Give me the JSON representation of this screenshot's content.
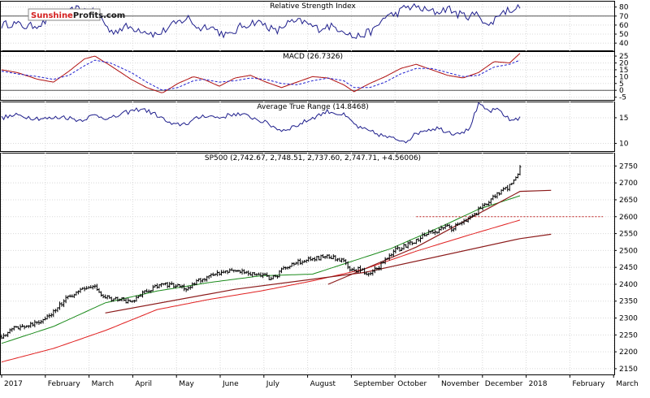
{
  "brand": {
    "part1": "Sunshine",
    "part2": "Profits",
    "part3": ".com"
  },
  "colors": {
    "rsi": "#1e1e8c",
    "macd": "#b01010",
    "signal": "#2020d0",
    "atr": "#1e1e8c",
    "sma50": "#1a8a1a",
    "sma200": "#e02020",
    "trend": "#8b1a1a",
    "resistance": "#c02020",
    "price": "#000000"
  },
  "chart_data": [
    {
      "type": "line",
      "title": "Relative Strength Index",
      "y_ticks": [
        40,
        50,
        60,
        70,
        80
      ],
      "ylim": [
        32,
        86
      ],
      "reference_line": 70,
      "x_range": [
        0,
        1
      ],
      "series": [
        {
          "name": "RSI",
          "anchors": [
            [
              0.0,
              60
            ],
            [
              0.02,
              62
            ],
            [
              0.05,
              58
            ],
            [
              0.08,
              62
            ],
            [
              0.1,
              72
            ],
            [
              0.12,
              68
            ],
            [
              0.14,
              78
            ],
            [
              0.17,
              76
            ],
            [
              0.19,
              70
            ],
            [
              0.21,
              52
            ],
            [
              0.24,
              58
            ],
            [
              0.27,
              55
            ],
            [
              0.3,
              49
            ],
            [
              0.33,
              60
            ],
            [
              0.36,
              68
            ],
            [
              0.38,
              56
            ],
            [
              0.4,
              60
            ],
            [
              0.42,
              52
            ],
            [
              0.44,
              48
            ],
            [
              0.46,
              58
            ],
            [
              0.49,
              64
            ],
            [
              0.51,
              60
            ],
            [
              0.53,
              52
            ],
            [
              0.55,
              62
            ],
            [
              0.58,
              64
            ],
            [
              0.61,
              56
            ],
            [
              0.63,
              59
            ],
            [
              0.66,
              55
            ],
            [
              0.68,
              46
            ],
            [
              0.7,
              50
            ],
            [
              0.72,
              55
            ],
            [
              0.74,
              70
            ],
            [
              0.76,
              72
            ],
            [
              0.78,
              80
            ],
            [
              0.8,
              80
            ],
            [
              0.82,
              76
            ],
            [
              0.84,
              74
            ],
            [
              0.86,
              79
            ],
            [
              0.88,
              72
            ],
            [
              0.9,
              70
            ],
            [
              0.92,
              72
            ],
            [
              0.94,
              58
            ],
            [
              0.96,
              73
            ],
            [
              0.98,
              77
            ],
            [
              1.0,
              80
            ]
          ]
        }
      ]
    },
    {
      "type": "line",
      "title": "MACD (26.7326)",
      "y_ticks": [
        -5,
        0,
        5,
        10,
        15,
        20,
        25
      ],
      "ylim": [
        -7,
        28
      ],
      "x_range": [
        0,
        1
      ],
      "series": [
        {
          "name": "MACD",
          "anchors": [
            [
              0.0,
              15
            ],
            [
              0.03,
              13
            ],
            [
              0.07,
              8
            ],
            [
              0.1,
              6
            ],
            [
              0.13,
              14
            ],
            [
              0.16,
              23
            ],
            [
              0.18,
              25
            ],
            [
              0.21,
              18
            ],
            [
              0.25,
              8
            ],
            [
              0.28,
              2
            ],
            [
              0.31,
              -2
            ],
            [
              0.34,
              5
            ],
            [
              0.37,
              10
            ],
            [
              0.39,
              8
            ],
            [
              0.42,
              3
            ],
            [
              0.45,
              9
            ],
            [
              0.48,
              11
            ],
            [
              0.51,
              6
            ],
            [
              0.54,
              2
            ],
            [
              0.57,
              6
            ],
            [
              0.6,
              10
            ],
            [
              0.63,
              9
            ],
            [
              0.66,
              4
            ],
            [
              0.68,
              -1
            ],
            [
              0.71,
              5
            ],
            [
              0.74,
              10
            ],
            [
              0.77,
              16
            ],
            [
              0.8,
              19
            ],
            [
              0.83,
              15
            ],
            [
              0.86,
              11
            ],
            [
              0.89,
              9
            ],
            [
              0.92,
              13
            ],
            [
              0.95,
              21
            ],
            [
              0.98,
              20
            ],
            [
              1.0,
              27
            ]
          ]
        },
        {
          "name": "Signal",
          "anchors": [
            [
              0.0,
              14
            ],
            [
              0.03,
              12
            ],
            [
              0.07,
              10
            ],
            [
              0.1,
              8
            ],
            [
              0.13,
              11
            ],
            [
              0.16,
              18
            ],
            [
              0.18,
              22
            ],
            [
              0.21,
              20
            ],
            [
              0.25,
              13
            ],
            [
              0.28,
              6
            ],
            [
              0.31,
              0
            ],
            [
              0.34,
              2
            ],
            [
              0.37,
              7
            ],
            [
              0.39,
              8
            ],
            [
              0.42,
              6
            ],
            [
              0.45,
              7
            ],
            [
              0.48,
              9
            ],
            [
              0.51,
              8
            ],
            [
              0.54,
              5
            ],
            [
              0.57,
              4
            ],
            [
              0.6,
              7
            ],
            [
              0.63,
              9
            ],
            [
              0.66,
              7
            ],
            [
              0.68,
              2
            ],
            [
              0.71,
              2
            ],
            [
              0.74,
              6
            ],
            [
              0.77,
              12
            ],
            [
              0.8,
              16
            ],
            [
              0.83,
              16
            ],
            [
              0.86,
              13
            ],
            [
              0.89,
              10
            ],
            [
              0.92,
              11
            ],
            [
              0.95,
              17
            ],
            [
              0.98,
              19
            ],
            [
              1.0,
              22
            ]
          ]
        }
      ]
    },
    {
      "type": "line",
      "title": "Average True Range (14.8468)",
      "y_ticks": [
        10,
        15
      ],
      "ylim": [
        8.5,
        18
      ],
      "x_range": [
        0,
        1
      ],
      "series": [
        {
          "name": "ATR",
          "anchors": [
            [
              0.0,
              15
            ],
            [
              0.03,
              15.5
            ],
            [
              0.06,
              15
            ],
            [
              0.09,
              14.8
            ],
            [
              0.12,
              15.2
            ],
            [
              0.15,
              14.5
            ],
            [
              0.18,
              15.5
            ],
            [
              0.21,
              14.8
            ],
            [
              0.24,
              16
            ],
            [
              0.27,
              16.8
            ],
            [
              0.3,
              15.5
            ],
            [
              0.33,
              13.5
            ],
            [
              0.36,
              14
            ],
            [
              0.39,
              15.5
            ],
            [
              0.42,
              15
            ],
            [
              0.45,
              15.8
            ],
            [
              0.48,
              15.2
            ],
            [
              0.51,
              14
            ],
            [
              0.54,
              12.5
            ],
            [
              0.57,
              13.5
            ],
            [
              0.6,
              15
            ],
            [
              0.63,
              16.3
            ],
            [
              0.66,
              15.5
            ],
            [
              0.69,
              13
            ],
            [
              0.72,
              12
            ],
            [
              0.75,
              11
            ],
            [
              0.78,
              10.5
            ],
            [
              0.81,
              12.5
            ],
            [
              0.84,
              13
            ],
            [
              0.87,
              12
            ],
            [
              0.9,
              12.5
            ],
            [
              0.92,
              17.5
            ],
            [
              0.94,
              16.3
            ],
            [
              0.96,
              16.5
            ],
            [
              0.98,
              14.5
            ],
            [
              1.0,
              15
            ]
          ]
        }
      ]
    },
    {
      "type": "candlestick",
      "title": "SP500 (2,742.67, 2,748.51, 2,737.60, 2,747.71, +4.56006)",
      "y_ticks": [
        2150,
        2200,
        2250,
        2300,
        2350,
        2400,
        2450,
        2500,
        2550,
        2600,
        2650,
        2700,
        2750
      ],
      "ylim": [
        2133,
        2787
      ],
      "x_labels": [
        "2017",
        "February",
        "March",
        "April",
        "May",
        "June",
        "July",
        "August",
        "September",
        "October",
        "November",
        "December",
        "2018",
        "February",
        "March"
      ],
      "price_anchors": [
        [
          0.0,
          2245
        ],
        [
          0.02,
          2268
        ],
        [
          0.05,
          2275
        ],
        [
          0.08,
          2295
        ],
        [
          0.1,
          2320
        ],
        [
          0.13,
          2365
        ],
        [
          0.16,
          2385
        ],
        [
          0.18,
          2395
        ],
        [
          0.19,
          2372
        ],
        [
          0.21,
          2358
        ],
        [
          0.23,
          2355
        ],
        [
          0.25,
          2345
        ],
        [
          0.27,
          2372
        ],
        [
          0.29,
          2388
        ],
        [
          0.3,
          2395
        ],
        [
          0.32,
          2400
        ],
        [
          0.34,
          2395
        ],
        [
          0.36,
          2385
        ],
        [
          0.37,
          2405
        ],
        [
          0.39,
          2415
        ],
        [
          0.41,
          2430
        ],
        [
          0.43,
          2440
        ],
        [
          0.45,
          2442
        ],
        [
          0.47,
          2435
        ],
        [
          0.49,
          2432
        ],
        [
          0.51,
          2425
        ],
        [
          0.52,
          2415
        ],
        [
          0.53,
          2425
        ],
        [
          0.54,
          2440
        ],
        [
          0.56,
          2458
        ],
        [
          0.58,
          2470
        ],
        [
          0.6,
          2475
        ],
        [
          0.62,
          2480
        ],
        [
          0.63,
          2482
        ],
        [
          0.65,
          2475
        ],
        [
          0.66,
          2470
        ],
        [
          0.67,
          2440
        ],
        [
          0.68,
          2438
        ],
        [
          0.69,
          2445
        ],
        [
          0.7,
          2435
        ],
        [
          0.71,
          2430
        ],
        [
          0.72,
          2445
        ],
        [
          0.73,
          2455
        ],
        [
          0.74,
          2470
        ],
        [
          0.75,
          2490
        ],
        [
          0.76,
          2500
        ],
        [
          0.78,
          2515
        ],
        [
          0.8,
          2530
        ],
        [
          0.82,
          2548
        ],
        [
          0.83,
          2555
        ],
        [
          0.84,
          2555
        ],
        [
          0.85,
          2568
        ],
        [
          0.86,
          2570
        ],
        [
          0.87,
          2565
        ],
        [
          0.88,
          2575
        ],
        [
          0.89,
          2582
        ],
        [
          0.9,
          2592
        ],
        [
          0.91,
          2600
        ],
        [
          0.92,
          2620
        ],
        [
          0.93,
          2630
        ],
        [
          0.94,
          2645
        ],
        [
          0.95,
          2660
        ],
        [
          0.96,
          2668
        ],
        [
          0.97,
          2680
        ],
        [
          0.98,
          2690
        ],
        [
          0.985,
          2700
        ],
        [
          0.99,
          2705
        ],
        [
          1.0,
          2747.71
        ]
      ],
      "lines": [
        {
          "name": "50-day moving average",
          "anchors": [
            [
              0.0,
              2225
            ],
            [
              0.1,
              2275
            ],
            [
              0.2,
              2345
            ],
            [
              0.3,
              2380
            ],
            [
              0.4,
              2405
            ],
            [
              0.5,
              2425
            ],
            [
              0.6,
              2430
            ],
            [
              0.66,
              2460
            ],
            [
              0.75,
              2505
            ],
            [
              0.85,
              2572
            ],
            [
              0.92,
              2622
            ],
            [
              1.0,
              2662
            ]
          ]
        },
        {
          "name": "200-day moving average",
          "anchors": [
            [
              0.0,
              2170
            ],
            [
              0.1,
              2210
            ],
            [
              0.2,
              2263
            ],
            [
              0.3,
              2325
            ],
            [
              0.4,
              2355
            ],
            [
              0.5,
              2380
            ],
            [
              0.6,
              2410
            ],
            [
              0.7,
              2445
            ],
            [
              0.8,
              2498
            ],
            [
              0.9,
              2545
            ],
            [
              1.0,
              2590
            ]
          ]
        },
        {
          "name": "Long-term rising trend line",
          "anchors": [
            [
              0.2,
              2315
            ],
            [
              0.45,
              2385
            ],
            [
              0.7,
              2435
            ],
            [
              1.0,
              2535
            ]
          ]
        },
        {
          "name": "Short-term rising trend line",
          "anchors": [
            [
              0.63,
              2400
            ],
            [
              0.8,
              2510
            ],
            [
              1.0,
              2675
            ]
          ]
        },
        {
          "name": "2600 resistance level",
          "anchors": [
            [
              0.84,
              2600
            ],
            [
              1.0,
              2600
            ]
          ]
        }
      ]
    }
  ]
}
